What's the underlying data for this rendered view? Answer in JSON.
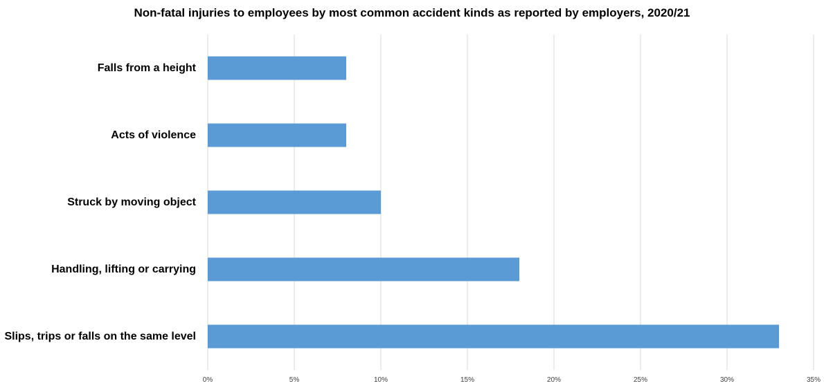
{
  "chart_data": {
    "type": "bar",
    "orientation": "horizontal",
    "title": "Non-fatal injuries to employees by most common accident kinds as reported by employers, 2020/21",
    "categories": [
      "Falls from a height",
      "Acts of violence",
      "Struck by moving object",
      "Handling, lifting or carrying",
      "Slips, trips or falls on the same level"
    ],
    "values": [
      8,
      8,
      10,
      18,
      33
    ],
    "xlabel": "",
    "ylabel": "",
    "xlim": [
      0,
      35
    ],
    "x_ticks": [
      0,
      5,
      10,
      15,
      20,
      25,
      30,
      35
    ],
    "x_tick_labels": [
      "0%",
      "5%",
      "10%",
      "15%",
      "20%",
      "25%",
      "30%",
      "35%"
    ],
    "grid": "vertical",
    "legend": "none",
    "bar_color": "#5B9BD5",
    "grid_color": "#D9D9D9"
  }
}
